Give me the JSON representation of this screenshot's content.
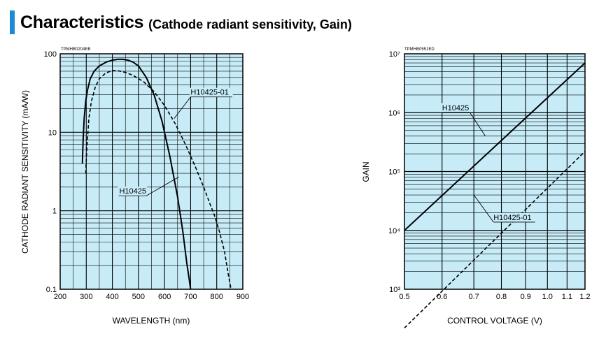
{
  "header": {
    "title": "Characteristics",
    "subtitle": "(Cathode radiant sensitivity, Gain)"
  },
  "colors": {
    "accent": "#1c8ad6",
    "plot_background": "#c7ecf8",
    "grid": "#000000"
  },
  "chart_data": [
    {
      "type": "line",
      "code": "TPMHB0204EB",
      "title": "",
      "xlabel": "WAVELENGTH (nm)",
      "ylabel": "CATHODE RADIANT SENSITIVITY (mA/W)",
      "xlim": [
        200,
        900
      ],
      "ylim": [
        0.1,
        100
      ],
      "yscale": "log",
      "grid": true,
      "x_ticks": [
        "200",
        "300",
        "400",
        "500",
        "600",
        "700",
        "800",
        "900"
      ],
      "y_ticks": [
        "0.1",
        "1",
        "10",
        "100"
      ],
      "series": [
        {
          "name": "H10425",
          "style": "solid",
          "x": [
            285,
            288,
            292,
            298,
            305,
            315,
            330,
            350,
            375,
            400,
            420,
            440,
            460,
            480,
            500,
            530,
            560,
            590,
            620,
            650,
            670,
            685,
            695,
            700
          ],
          "y": [
            4,
            8,
            15,
            25,
            35,
            48,
            60,
            70,
            78,
            83,
            85,
            85,
            83,
            78,
            70,
            50,
            30,
            14,
            5,
            1.5,
            0.55,
            0.22,
            0.13,
            0.1
          ]
        },
        {
          "name": "H10425-01",
          "style": "dashed",
          "x": [
            298,
            302,
            310,
            320,
            335,
            350,
            375,
            400,
            420,
            450,
            480,
            520,
            560,
            600,
            640,
            680,
            720,
            750,
            775,
            790,
            810,
            830,
            845,
            855
          ],
          "y": [
            3,
            6,
            15,
            25,
            38,
            48,
            57,
            61,
            61,
            58,
            53,
            44,
            33,
            22,
            13,
            7,
            3.5,
            2,
            1.2,
            0.9,
            0.55,
            0.3,
            0.15,
            0.1
          ]
        }
      ],
      "annotations": [
        {
          "text": "H10425-01",
          "series": "H10425-01"
        },
        {
          "text": "H10425",
          "series": "H10425"
        }
      ]
    },
    {
      "type": "line",
      "code": "TPMHB0551ED",
      "title": "",
      "xlabel": "CONTROL VOLTAGE (V)",
      "ylabel": "GAIN",
      "xlim": [
        0.5,
        1.2
      ],
      "ylim": [
        1000,
        10000000
      ],
      "xscale": "log",
      "yscale": "log",
      "grid": true,
      "x_ticks": [
        "0.5",
        "0.6",
        "0.7",
        "0.8",
        "0.9",
        "1.0",
        "1.1",
        "1.2"
      ],
      "y_ticks": [
        "10³",
        "10⁴",
        "10⁵",
        "10⁶",
        "10⁷"
      ],
      "series": [
        {
          "name": "H10425",
          "style": "solid",
          "x": [
            0.5,
            1.2
          ],
          "y": [
            10000,
            7000000
          ]
        },
        {
          "name": "H10425-01",
          "style": "dashed",
          "x": [
            0.5,
            1.2
          ],
          "y": [
            220,
            220000
          ]
        }
      ],
      "annotations": [
        {
          "text": "H10425",
          "series": "H10425"
        },
        {
          "text": "H10425-01",
          "series": "H10425-01"
        }
      ]
    }
  ]
}
